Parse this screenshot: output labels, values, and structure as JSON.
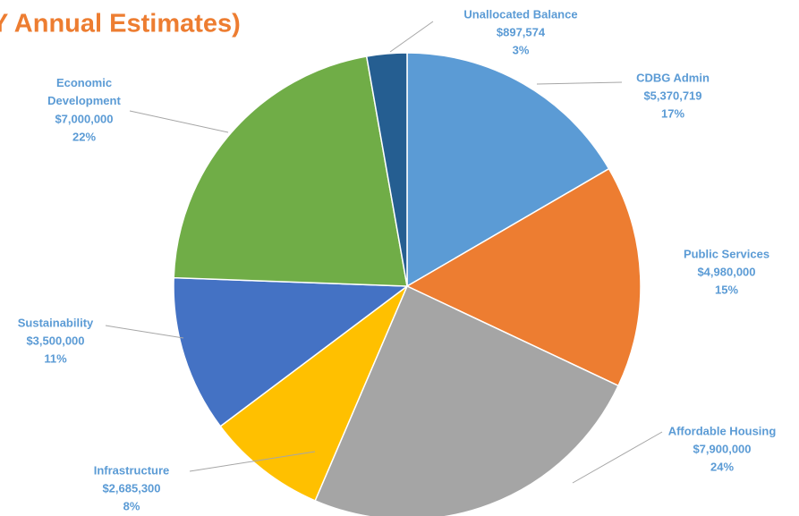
{
  "chart_data": {
    "type": "pie",
    "title": "Y Annual Estimates)",
    "categories": [
      "CDBG Admin",
      "Public Services",
      "Affordable Housing",
      "Infrastructure",
      "Sustainability",
      "Economic Development",
      "Unallocated Balance"
    ],
    "values": [
      5370719,
      4980000,
      7900000,
      2685300,
      3500000,
      7000000,
      897574
    ],
    "value_labels": [
      "$5,370,719",
      "$4,980,000",
      "$7,900,000",
      "$2,685,300",
      "$3,500,000",
      "$7,000,000",
      "$897,574"
    ],
    "percent_labels": [
      "17%",
      "15%",
      "24%",
      "8%",
      "11%",
      "22%",
      "3%"
    ],
    "colors": [
      "#5b9bd5",
      "#ed7d31",
      "#a5a5a5",
      "#ffc000",
      "#4472c4",
      "#70ad47",
      "#255e91"
    ]
  }
}
